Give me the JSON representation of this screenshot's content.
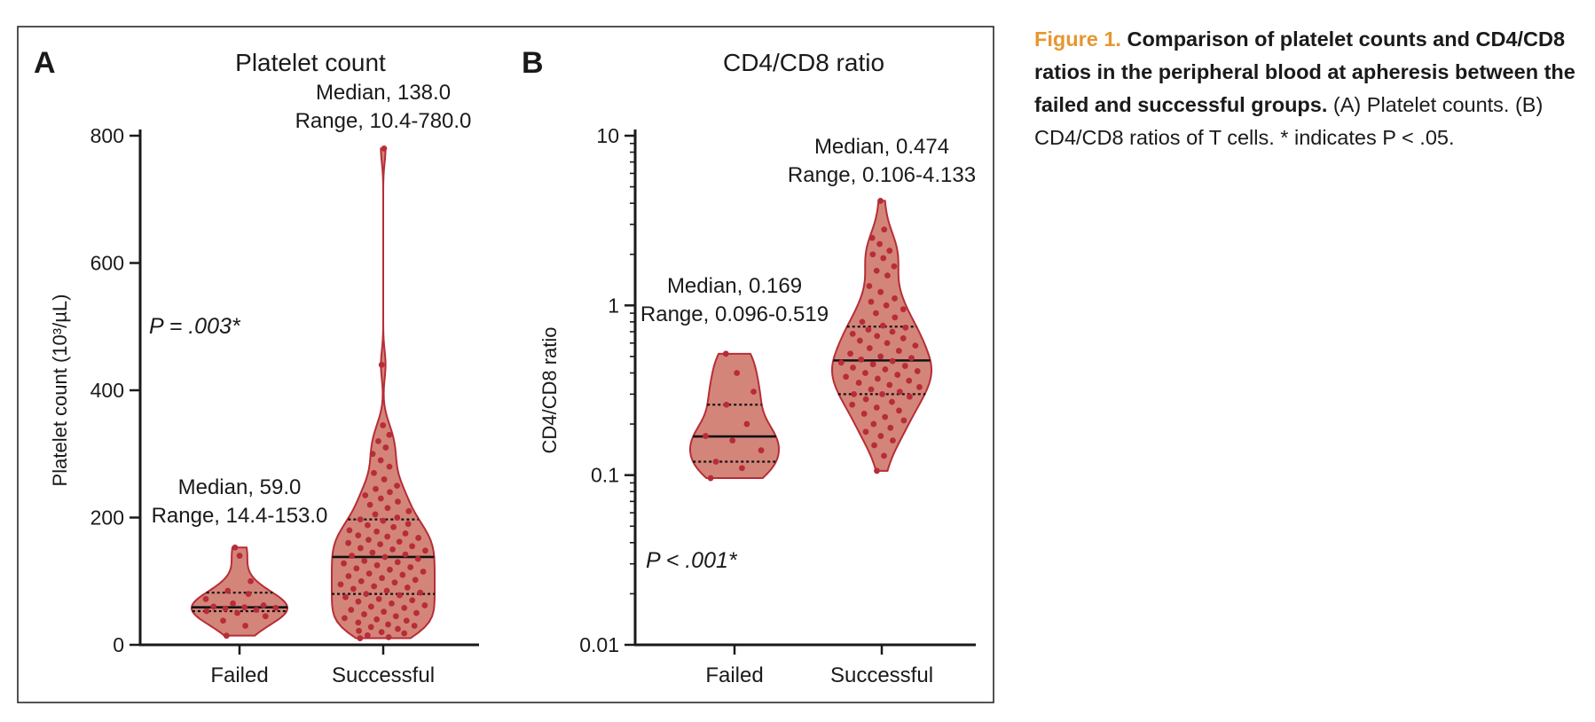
{
  "colors": {
    "violin_fill": "#d4857a",
    "violin_stroke": "#b72d37",
    "dot": "#b72d37",
    "caption_label": "#e7962f"
  },
  "chart_data": [
    {
      "panel_label": "A",
      "type": "violin",
      "title": "Platelet count",
      "ylabel": "Platelet count (10³/µL)",
      "xlabel": "",
      "y_scale": "linear",
      "ylim": [
        0,
        800
      ],
      "y_ticks": [
        0,
        200,
        400,
        600,
        800
      ],
      "y_tick_labels": [
        "0",
        "200",
        "400",
        "600",
        "800"
      ],
      "categories": [
        "Failed",
        "Successful"
      ],
      "groups": [
        {
          "category": "Failed",
          "median": 59.0,
          "q1": 53,
          "q3": 82,
          "min": 14.4,
          "max": 153.0,
          "annotation": [
            "Median, 59.0",
            "Range, 14.4-153.0"
          ],
          "points": [
            14.4,
            30,
            38,
            45,
            50,
            53,
            55,
            57,
            58,
            59,
            60,
            62,
            65,
            72,
            80,
            85,
            100,
            140,
            153
          ]
        },
        {
          "category": "Successful",
          "median": 138.0,
          "q1": 80,
          "q3": 197,
          "min": 10.4,
          "max": 780.0,
          "annotation": [
            "Median, 138.0",
            "Range, 10.4-780.0"
          ],
          "points": [
            10.4,
            12,
            15,
            18,
            20,
            22,
            25,
            28,
            30,
            32,
            35,
            38,
            40,
            42,
            45,
            48,
            50,
            52,
            55,
            58,
            60,
            62,
            65,
            68,
            70,
            72,
            75,
            78,
            80,
            82,
            85,
            88,
            90,
            92,
            95,
            98,
            100,
            102,
            105,
            108,
            110,
            112,
            115,
            118,
            120,
            122,
            125,
            128,
            130,
            132,
            135,
            138,
            140,
            142,
            145,
            148,
            150,
            152,
            155,
            158,
            160,
            162,
            165,
            168,
            170,
            172,
            175,
            178,
            180,
            185,
            188,
            190,
            195,
            197,
            200,
            205,
            210,
            215,
            220,
            225,
            230,
            235,
            240,
            245,
            250,
            260,
            270,
            280,
            290,
            300,
            310,
            320,
            330,
            345,
            440,
            780
          ]
        }
      ],
      "p_value_text": "P = .003*"
    },
    {
      "panel_label": "B",
      "type": "violin",
      "title": "CD4/CD8 ratio",
      "ylabel": "CD4/CD8 ratio",
      "xlabel": "",
      "y_scale": "log",
      "ylim": [
        0.01,
        10
      ],
      "y_ticks": [
        0.01,
        0.1,
        1,
        10
      ],
      "y_tick_labels": [
        "0.01",
        "0.1",
        "1",
        "10"
      ],
      "categories": [
        "Failed",
        "Successful"
      ],
      "groups": [
        {
          "category": "Failed",
          "median": 0.169,
          "q1": 0.12,
          "q3": 0.26,
          "min": 0.096,
          "max": 0.519,
          "annotation": [
            "Median, 0.169",
            "Range, 0.096-0.519"
          ],
          "points": [
            0.096,
            0.11,
            0.12,
            0.14,
            0.16,
            0.17,
            0.2,
            0.26,
            0.31,
            0.4,
            0.519
          ]
        },
        {
          "category": "Successful",
          "median": 0.474,
          "q1": 0.3,
          "q3": 0.75,
          "min": 0.106,
          "max": 4.133,
          "annotation": [
            "Median, 0.474",
            "Range, 0.106-4.133"
          ],
          "points": [
            0.106,
            0.13,
            0.15,
            0.16,
            0.17,
            0.18,
            0.19,
            0.2,
            0.21,
            0.22,
            0.23,
            0.24,
            0.25,
            0.26,
            0.27,
            0.28,
            0.29,
            0.3,
            0.3,
            0.31,
            0.32,
            0.33,
            0.34,
            0.35,
            0.36,
            0.37,
            0.38,
            0.39,
            0.4,
            0.41,
            0.42,
            0.43,
            0.44,
            0.45,
            0.46,
            0.47,
            0.48,
            0.49,
            0.5,
            0.52,
            0.54,
            0.56,
            0.58,
            0.6,
            0.62,
            0.64,
            0.66,
            0.68,
            0.7,
            0.72,
            0.74,
            0.76,
            0.8,
            0.85,
            0.9,
            0.95,
            1.0,
            1.05,
            1.1,
            1.2,
            1.3,
            1.5,
            1.6,
            1.7,
            1.9,
            2.0,
            2.1,
            2.3,
            2.5,
            2.8,
            4.133
          ]
        }
      ],
      "p_value_text": "P < .001*"
    }
  ],
  "caption": {
    "label": "Figure 1.",
    "title": "Comparison of platelet counts and CD4/CD8 ratios in the peripheral blood at apheresis between the failed and successful groups.",
    "body": "(A) Platelet counts. (B) CD4/CD8 ratios of T cells. * indicates P < .05."
  }
}
